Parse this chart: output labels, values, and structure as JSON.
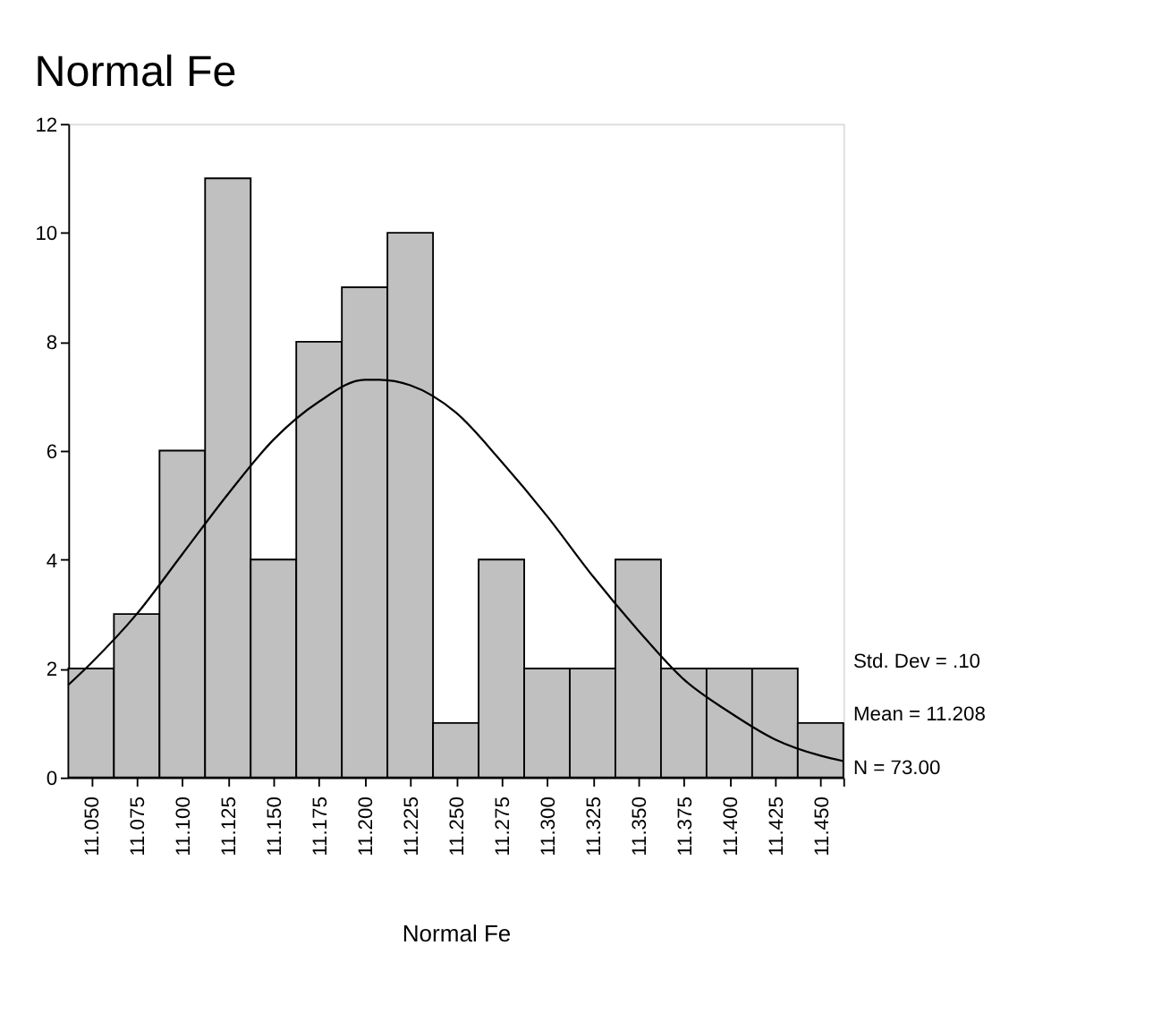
{
  "chart_data": {
    "type": "histogram",
    "title": "Normal Fe",
    "xlabel": "Normal Fe",
    "bins": [
      11.0375,
      11.0625,
      11.0875,
      11.1125,
      11.1375,
      11.1625,
      11.1875,
      11.2125,
      11.2375,
      11.2625,
      11.2875,
      11.3125,
      11.3375,
      11.3625,
      11.3875,
      11.4125,
      11.4375,
      11.4625
    ],
    "values": [
      2,
      3,
      6,
      11,
      4,
      8,
      9,
      10,
      1,
      4,
      2,
      2,
      4,
      2,
      2,
      2,
      1
    ],
    "color": "#c0c0c0",
    "series": [
      {
        "type": "line",
        "color": "#000000",
        "x": [
          11.0375,
          11.05,
          11.075,
          11.1,
          11.125,
          11.15,
          11.175,
          11.2,
          11.208,
          11.225,
          11.25,
          11.275,
          11.3,
          11.325,
          11.35,
          11.375,
          11.4,
          11.425,
          11.45,
          11.4625
        ],
        "values": [
          1.7,
          2.1,
          3.0,
          4.1,
          5.2,
          6.2,
          6.9,
          7.3,
          7.3,
          7.2,
          6.7,
          5.8,
          4.8,
          3.7,
          2.7,
          1.8,
          1.2,
          0.7,
          0.4,
          0.3
        ]
      }
    ],
    "xlim": [
      11.0375,
      11.4625
    ],
    "xticks": [
      {
        "value": 11.05,
        "label": "11.050"
      },
      {
        "value": 11.075,
        "label": "11.075"
      },
      {
        "value": 11.1,
        "label": "11.100"
      },
      {
        "value": 11.125,
        "label": "11.125"
      },
      {
        "value": 11.15,
        "label": "11.150"
      },
      {
        "value": 11.175,
        "label": "11.175"
      },
      {
        "value": 11.2,
        "label": "11.200"
      },
      {
        "value": 11.225,
        "label": "11.225"
      },
      {
        "value": 11.25,
        "label": "11.250"
      },
      {
        "value": 11.275,
        "label": "11.275"
      },
      {
        "value": 11.3,
        "label": "11.300"
      },
      {
        "value": 11.325,
        "label": "11.325"
      },
      {
        "value": 11.35,
        "label": "11.350"
      },
      {
        "value": 11.375,
        "label": "11.375"
      },
      {
        "value": 11.4,
        "label": "11.400"
      },
      {
        "value": 11.425,
        "label": "11.425"
      },
      {
        "value": 11.45,
        "label": "11.450"
      },
      {
        "value": 11.4625,
        "label": null
      }
    ],
    "ylim": [
      0,
      12
    ],
    "yticks": [
      0,
      2,
      4,
      6,
      8,
      10,
      12
    ],
    "grid": false,
    "annotations": [
      "Std. Dev = .10",
      "Mean = 11.208",
      "N = 73.00"
    ]
  }
}
